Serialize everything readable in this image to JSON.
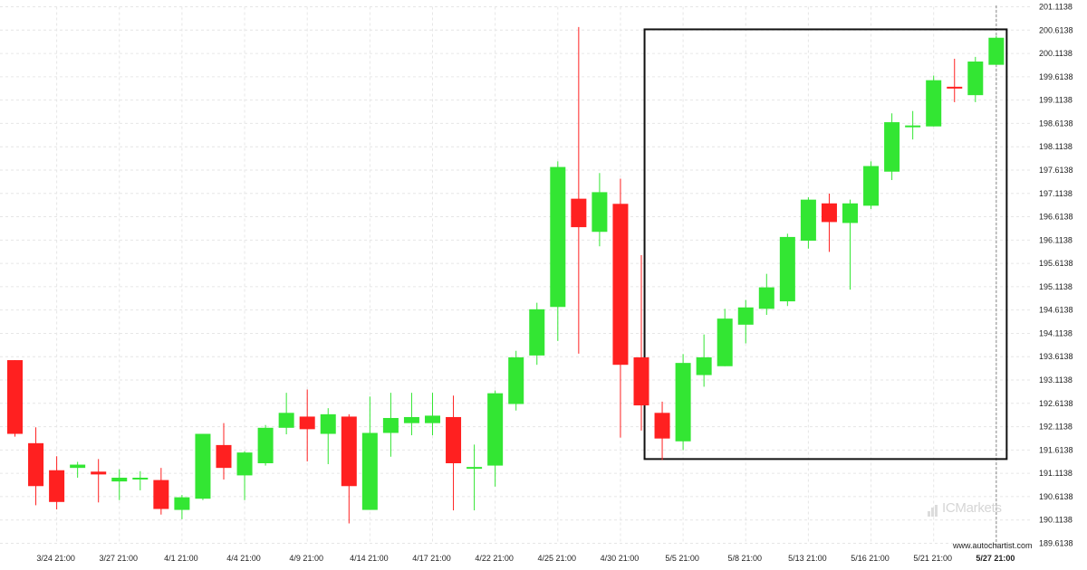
{
  "brand": {
    "logo_text": "ICMarkets",
    "website": "www.autochartist.com"
  },
  "colors": {
    "up": "#33e633",
    "down": "#ff2020",
    "grid": "#e6e6e6",
    "box": "#111111",
    "current_line": "#888888"
  },
  "chart_data": {
    "type": "candlestick",
    "ylim": [
      189.6138,
      201.1138
    ],
    "y_ticks": [
      "201.1138",
      "200.6138",
      "200.1138",
      "199.6138",
      "199.1138",
      "198.6138",
      "198.1138",
      "197.6138",
      "197.1138",
      "196.6138",
      "196.1138",
      "195.6138",
      "195.1138",
      "194.6138",
      "194.1138",
      "193.6138",
      "193.1138",
      "192.6138",
      "192.1138",
      "191.6138",
      "191.1138",
      "190.6138",
      "190.1138",
      "189.6138"
    ],
    "x_ticks": [
      {
        "label": "3/24 21:00",
        "index": 2
      },
      {
        "label": "3/27 21:00",
        "index": 5
      },
      {
        "label": "4/1 21:00",
        "index": 8
      },
      {
        "label": "4/4 21:00",
        "index": 11
      },
      {
        "label": "4/9 21:00",
        "index": 14
      },
      {
        "label": "4/14 21:00",
        "index": 17
      },
      {
        "label": "4/17 21:00",
        "index": 20
      },
      {
        "label": "4/22 21:00",
        "index": 23
      },
      {
        "label": "4/25 21:00",
        "index": 26
      },
      {
        "label": "4/30 21:00",
        "index": 29
      },
      {
        "label": "5/5 21:00",
        "index": 32
      },
      {
        "label": "5/8 21:00",
        "index": 35
      },
      {
        "label": "5/13 21:00",
        "index": 38
      },
      {
        "label": "5/16 21:00",
        "index": 41
      },
      {
        "label": "5/21 21:00",
        "index": 44
      },
      {
        "label": "5/27 21:00",
        "index": 47,
        "bold": true
      }
    ],
    "candles": [
      {
        "o": 193.54,
        "h": 193.54,
        "l": 191.9,
        "c": 191.96
      },
      {
        "o": 191.76,
        "h": 192.1,
        "l": 190.43,
        "c": 190.84
      },
      {
        "o": 191.18,
        "h": 191.48,
        "l": 190.34,
        "c": 190.5
      },
      {
        "o": 191.23,
        "h": 191.36,
        "l": 191.02,
        "c": 191.3
      },
      {
        "o": 191.15,
        "h": 191.42,
        "l": 190.49,
        "c": 191.09
      },
      {
        "o": 190.94,
        "h": 191.2,
        "l": 190.54,
        "c": 191.02
      },
      {
        "o": 190.99,
        "h": 191.16,
        "l": 190.75,
        "c": 191.02
      },
      {
        "o": 190.97,
        "h": 191.23,
        "l": 190.23,
        "c": 190.35
      },
      {
        "o": 190.33,
        "h": 190.65,
        "l": 190.13,
        "c": 190.6
      },
      {
        "o": 190.57,
        "h": 191.96,
        "l": 190.54,
        "c": 191.96
      },
      {
        "o": 191.72,
        "h": 192.19,
        "l": 190.98,
        "c": 191.23
      },
      {
        "o": 191.07,
        "h": 191.59,
        "l": 190.54,
        "c": 191.56
      },
      {
        "o": 191.33,
        "h": 192.15,
        "l": 191.28,
        "c": 192.09
      },
      {
        "o": 192.09,
        "h": 192.84,
        "l": 191.95,
        "c": 192.41
      },
      {
        "o": 192.33,
        "h": 192.91,
        "l": 191.37,
        "c": 192.06
      },
      {
        "o": 191.96,
        "h": 192.51,
        "l": 191.31,
        "c": 192.38
      },
      {
        "o": 192.33,
        "h": 192.38,
        "l": 190.04,
        "c": 190.84
      },
      {
        "o": 190.33,
        "h": 192.76,
        "l": 190.33,
        "c": 191.98
      },
      {
        "o": 191.98,
        "h": 192.84,
        "l": 191.47,
        "c": 192.3
      },
      {
        "o": 192.19,
        "h": 192.84,
        "l": 191.93,
        "c": 192.32
      },
      {
        "o": 192.19,
        "h": 192.84,
        "l": 191.93,
        "c": 192.35
      },
      {
        "o": 192.32,
        "h": 192.78,
        "l": 190.32,
        "c": 191.33
      },
      {
        "o": 191.25,
        "h": 191.73,
        "l": 190.32,
        "c": 191.25
      },
      {
        "o": 191.28,
        "h": 192.89,
        "l": 190.83,
        "c": 192.83
      },
      {
        "o": 192.6,
        "h": 193.74,
        "l": 192.46,
        "c": 193.6
      },
      {
        "o": 193.64,
        "h": 194.77,
        "l": 193.44,
        "c": 194.63
      },
      {
        "o": 194.68,
        "h": 197.8,
        "l": 193.95,
        "c": 197.68
      },
      {
        "o": 197.0,
        "h": 200.68,
        "l": 193.68,
        "c": 196.39
      },
      {
        "o": 196.29,
        "h": 197.55,
        "l": 195.98,
        "c": 197.14
      },
      {
        "o": 196.89,
        "h": 197.43,
        "l": 191.88,
        "c": 193.44
      },
      {
        "o": 193.6,
        "h": 195.79,
        "l": 192.03,
        "c": 192.57
      },
      {
        "o": 192.41,
        "h": 192.65,
        "l": 191.4,
        "c": 191.86
      },
      {
        "o": 191.8,
        "h": 193.67,
        "l": 191.61,
        "c": 193.48
      },
      {
        "o": 193.22,
        "h": 194.09,
        "l": 192.97,
        "c": 193.6
      },
      {
        "o": 193.41,
        "h": 194.64,
        "l": 193.41,
        "c": 194.43
      },
      {
        "o": 194.3,
        "h": 194.83,
        "l": 193.9,
        "c": 194.67
      },
      {
        "o": 194.64,
        "h": 195.39,
        "l": 194.51,
        "c": 195.1
      },
      {
        "o": 194.8,
        "h": 196.25,
        "l": 194.7,
        "c": 196.18
      },
      {
        "o": 196.1,
        "h": 197.03,
        "l": 195.93,
        "c": 196.98
      },
      {
        "o": 196.9,
        "h": 197.11,
        "l": 195.86,
        "c": 196.5
      },
      {
        "o": 196.48,
        "h": 196.98,
        "l": 195.05,
        "c": 196.9
      },
      {
        "o": 196.85,
        "h": 197.8,
        "l": 196.78,
        "c": 197.7
      },
      {
        "o": 197.58,
        "h": 198.83,
        "l": 197.4,
        "c": 198.64
      },
      {
        "o": 198.57,
        "h": 198.88,
        "l": 198.27,
        "c": 198.57
      },
      {
        "o": 198.55,
        "h": 199.64,
        "l": 198.55,
        "c": 199.54
      },
      {
        "o": 199.4,
        "h": 200.0,
        "l": 199.07,
        "c": 199.37
      },
      {
        "o": 199.22,
        "h": 200.04,
        "l": 199.07,
        "c": 199.94
      },
      {
        "o": 199.87,
        "h": 200.49,
        "l": 199.87,
        "c": 200.45
      }
    ],
    "pattern_box": {
      "start_index": 31,
      "end_index": 47,
      "top": 200.63,
      "bottom": 191.42
    },
    "current_index": 47
  }
}
